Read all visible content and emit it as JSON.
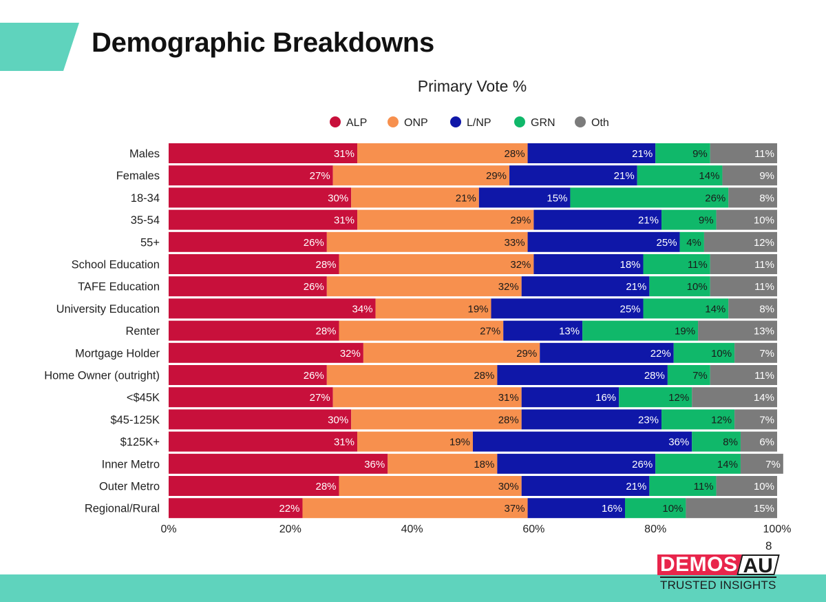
{
  "slide": {
    "title": "Demographic Breakdowns",
    "page_number": "8"
  },
  "logo": {
    "brand": "DEMOS",
    "suffix": "AU",
    "tagline": "TRUSTED INSIGHTS"
  },
  "colors": {
    "accent_teal": "#5fd3bd",
    "ALP": "#c8103b",
    "ONP": "#f7904e",
    "L/NP": "#0f17a8",
    "GRN": "#10b86a",
    "Oth": "#7b7b7b"
  },
  "chart_data": {
    "type": "bar",
    "orientation": "horizontal",
    "stacked": "100%",
    "title": "Primary Vote %",
    "legend_position": "top",
    "xlim": [
      0,
      100
    ],
    "x_ticks": [
      "0%",
      "20%",
      "40%",
      "60%",
      "80%",
      "100%"
    ],
    "categories": [
      "Males",
      "Females",
      "18-34",
      "35-54",
      "55+",
      "School Education",
      "TAFE Education",
      "University Education",
      "Renter",
      "Mortgage Holder",
      "Home Owner (outright)",
      "<$45K",
      "$45-125K",
      "$125K+",
      "Inner Metro",
      "Outer Metro",
      "Regional/Rural"
    ],
    "series": [
      {
        "name": "ALP",
        "values": [
          31,
          27,
          30,
          31,
          26,
          28,
          26,
          34,
          28,
          32,
          26,
          27,
          30,
          31,
          36,
          28,
          22
        ]
      },
      {
        "name": "ONP",
        "values": [
          28,
          29,
          21,
          29,
          33,
          32,
          32,
          19,
          27,
          29,
          28,
          31,
          28,
          19,
          18,
          30,
          37
        ]
      },
      {
        "name": "L/NP",
        "values": [
          21,
          21,
          15,
          21,
          25,
          18,
          21,
          25,
          13,
          22,
          28,
          16,
          23,
          36,
          26,
          21,
          16
        ]
      },
      {
        "name": "GRN",
        "values": [
          9,
          14,
          26,
          9,
          4,
          11,
          10,
          14,
          19,
          10,
          7,
          12,
          12,
          8,
          14,
          11,
          10
        ]
      },
      {
        "name": "Oth",
        "values": [
          11,
          9,
          8,
          10,
          12,
          11,
          11,
          8,
          13,
          7,
          11,
          14,
          7,
          6,
          7,
          10,
          15
        ]
      }
    ]
  }
}
